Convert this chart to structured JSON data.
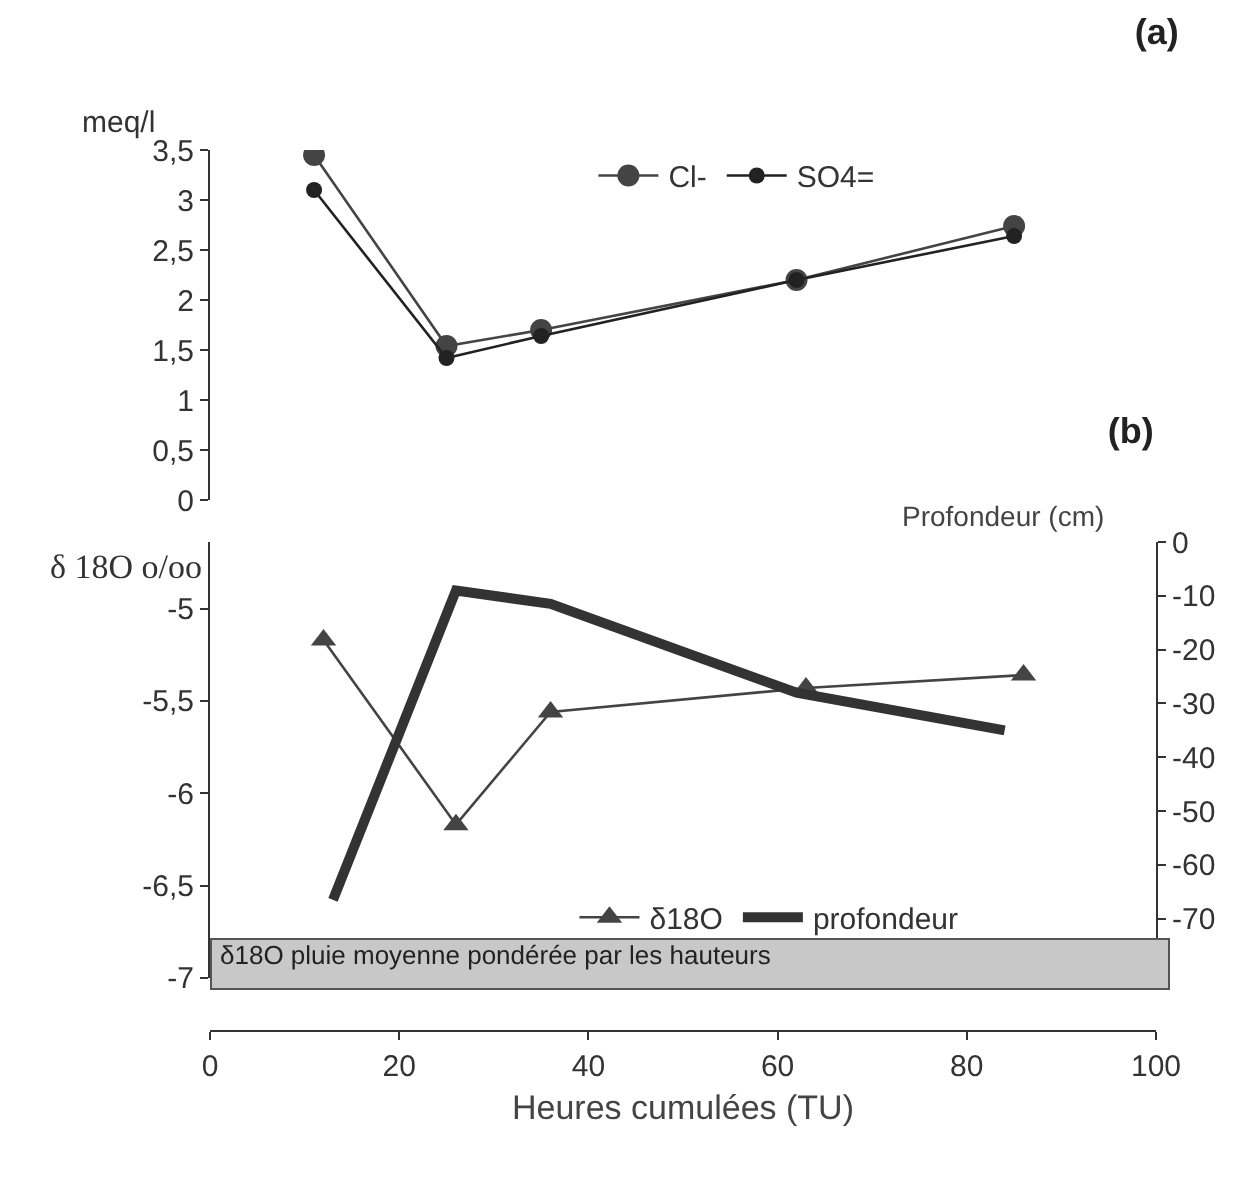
{
  "chart_data": [
    {
      "type": "line",
      "title": "(a)",
      "ylabel": "meq/l",
      "xlim": [
        0,
        100
      ],
      "ylim": [
        0,
        3.5
      ],
      "yticks": [
        0,
        {
          "value": 0.5,
          "label": "0,5"
        },
        1,
        {
          "value": 1.5,
          "label": "1,5"
        },
        2,
        {
          "value": 2.5,
          "label": "2,5"
        },
        3,
        {
          "value": 3.5,
          "label": "3,5"
        }
      ],
      "tick_labels": "y",
      "grid": false,
      "legend": "top",
      "line_style": "solid",
      "series": [
        {
          "name": "Cl-",
          "color": "#444444",
          "marker": "circle",
          "x": [
            11,
            25,
            35,
            62,
            85
          ],
          "values": [
            3.45,
            1.54,
            1.7,
            2.2,
            2.74
          ]
        },
        {
          "name": "SO4=",
          "color": "#222222",
          "marker": "circle",
          "x": [
            11,
            25,
            35,
            62,
            85
          ],
          "values": [
            3.1,
            1.42,
            1.64,
            2.2,
            2.64
          ]
        }
      ]
    },
    {
      "type": "line",
      "title": "(b)",
      "ylabel": "δ 18O o/oo",
      "y2label": "Profondeur (cm)",
      "xlabel": "Heures cumulées (TU)",
      "xlim": [
        0,
        100
      ],
      "xticks": [
        0,
        20,
        40,
        60,
        80,
        100
      ],
      "ylim": [
        -7,
        -4.64
      ],
      "yticks": [
        -7,
        {
          "value": -6.5,
          "label": "-6,5"
        },
        -6,
        {
          "value": -5.5,
          "label": "-5,5"
        },
        -5
      ],
      "y2lim": [
        -81,
        0
      ],
      "y2ticks": [
        -70,
        -60,
        -50,
        -40,
        -30,
        -20,
        -10,
        0
      ],
      "grid": false,
      "legend": "bottom",
      "line_style": "solid",
      "annotations": [
        "δ18O   pluie moyenne pondérée par les hauteurs"
      ],
      "series": [
        {
          "name": "δ18O",
          "color": "#444444",
          "marker": "triangle",
          "x": [
            12,
            26,
            36,
            63,
            86
          ],
          "values": [
            -5.17,
            -6.17,
            -5.56,
            -5.43,
            -5.36
          ]
        },
        {
          "name": "profondeur",
          "color": "#333333",
          "marker": "none",
          "axis": "y2",
          "x": [
            13,
            26,
            36,
            62,
            84
          ],
          "values": [
            -66.5,
            -9,
            -11.5,
            -28,
            -35
          ]
        }
      ]
    }
  ]
}
